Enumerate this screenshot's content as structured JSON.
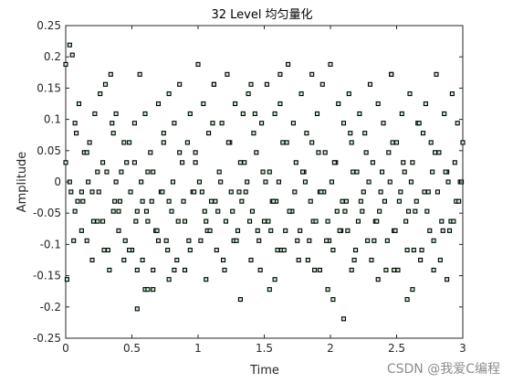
{
  "chart_data": {
    "type": "scatter",
    "title": "32 Level 均匀量化",
    "xlabel": "Time",
    "ylabel": "Amplitude",
    "xlim": [
      0,
      3
    ],
    "ylim": [
      -0.25,
      0.25
    ],
    "xticks": [
      "0",
      "0.5",
      "1",
      "1.5",
      "2",
      "2.5",
      "3"
    ],
    "yticks": [
      "-0.25",
      "-0.2",
      "-0.15",
      "-0.1",
      "-0.05",
      "0",
      "0.05",
      "0.1",
      "0.15",
      "0.2",
      "0.25"
    ],
    "grid": false,
    "legend": "none",
    "marker": "square",
    "marker_fill": "#c6efce",
    "marker_edge": "#000000",
    "quantization_levels": 32,
    "quantization_step": 0.0156,
    "series": [
      {
        "x": [
          0.0,
          0.01,
          0.03,
          0.05,
          0.07,
          0.09,
          0.1,
          0.12,
          0.14,
          0.16,
          0.18,
          0.2,
          0.22,
          0.24,
          0.26,
          0.28,
          0.3,
          0.32,
          0.34,
          0.36,
          0.38,
          0.4,
          0.42,
          0.44,
          0.46,
          0.48,
          0.5,
          0.52,
          0.54,
          0.56,
          0.58,
          0.6,
          0.62,
          0.64,
          0.66,
          0.68,
          0.7,
          0.72,
          0.74,
          0.76,
          0.78,
          0.8,
          0.82,
          0.84,
          0.86,
          0.88,
          0.9,
          0.92,
          0.94,
          0.96,
          0.98,
          1.0,
          1.02,
          1.04,
          1.06,
          1.08,
          1.1,
          1.12,
          1.14,
          1.16,
          1.18,
          1.2,
          1.22,
          1.24,
          1.26,
          1.28,
          1.3,
          1.32,
          1.34,
          1.36,
          1.38,
          1.4,
          1.42,
          1.44,
          1.46,
          1.48,
          1.5,
          1.52,
          1.54,
          1.56,
          1.58,
          1.6,
          1.62,
          1.64,
          1.66,
          1.68,
          1.7,
          1.72,
          1.74,
          1.76,
          1.78,
          1.8,
          1.82,
          1.84,
          1.86,
          1.88,
          1.9,
          1.92,
          1.94,
          1.96,
          1.98,
          2.0,
          2.02,
          2.04,
          2.06,
          2.08,
          2.1,
          2.12,
          2.14,
          2.16,
          2.18,
          2.2,
          2.22,
          2.24,
          2.26,
          2.28,
          2.3,
          2.32,
          2.34,
          2.36,
          2.38,
          2.4,
          2.42,
          2.44,
          2.46,
          2.48,
          2.5,
          2.52,
          2.54,
          2.56,
          2.58,
          2.6,
          2.62,
          2.64,
          2.66,
          2.68,
          2.7,
          2.72,
          2.74,
          2.76,
          2.78,
          2.8,
          2.82,
          2.84,
          2.86,
          2.88,
          2.9,
          2.92,
          2.94,
          2.96,
          2.98,
          3.0,
          0.0,
          0.06,
          0.08,
          0.12,
          0.16,
          0.2,
          0.24,
          0.28,
          0.33,
          0.35,
          0.37,
          0.4,
          0.44,
          0.48,
          0.52,
          0.54,
          0.58,
          0.62,
          0.66,
          0.7,
          0.74,
          0.78,
          0.82,
          0.86,
          0.9,
          0.94,
          0.98,
          1.03,
          1.07,
          1.11,
          1.15,
          1.19,
          1.23,
          1.27,
          1.31,
          1.35,
          1.39,
          1.43,
          1.47,
          1.51,
          1.55,
          1.59,
          1.63,
          1.67,
          1.71,
          1.75,
          1.79,
          1.83,
          1.87,
          1.91,
          1.95,
          1.99,
          2.03,
          2.07,
          2.11,
          2.15,
          2.19,
          2.23,
          2.27,
          2.31,
          2.35,
          2.39,
          2.43,
          2.47,
          2.51,
          2.55,
          2.59,
          2.63,
          2.67,
          2.71,
          2.75,
          2.79,
          2.83,
          2.87,
          2.91,
          2.95,
          2.99,
          0.03,
          0.04,
          0.07,
          0.13,
          0.17,
          0.21,
          0.25,
          0.29,
          0.31,
          0.36,
          0.38,
          0.41,
          0.45,
          0.49,
          0.53,
          0.57,
          0.61,
          0.65,
          0.69,
          0.73,
          0.77,
          0.81,
          0.85,
          0.89,
          0.93,
          0.97,
          1.01,
          1.05,
          1.09,
          1.13,
          1.17,
          1.21,
          1.25,
          1.29,
          1.33,
          1.37,
          1.41,
          1.45,
          1.49,
          1.53,
          1.57,
          1.61,
          1.65,
          1.69,
          1.73,
          1.77,
          1.81,
          1.85,
          1.89,
          1.93,
          1.97,
          2.01,
          2.05,
          2.09,
          2.13,
          2.17,
          2.21,
          2.25,
          2.29,
          2.33,
          2.37,
          2.41,
          2.45,
          2.49,
          2.53,
          2.57,
          2.61,
          2.65,
          2.69,
          2.73,
          2.77,
          2.81,
          2.85,
          2.89,
          2.93,
          2.97
        ],
        "y": [
          0.188,
          -0.156,
          0.219,
          0.203,
          0.094,
          -0.031,
          0.125,
          -0.078,
          0.047,
          -0.094,
          0.063,
          -0.016,
          0.109,
          -0.063,
          0.141,
          0.031,
          0.156,
          -0.109,
          0.172,
          0.078,
          0.109,
          -0.047,
          0.016,
          -0.125,
          0.031,
          0.063,
          -0.109,
          0.094,
          -0.141,
          0.172,
          -0.031,
          0.109,
          -0.063,
          0.047,
          0.016,
          -0.078,
          0.125,
          -0.016,
          0.063,
          -0.094,
          0.141,
          -0.047,
          0.094,
          -0.125,
          0.156,
          0.031,
          -0.141,
          0.063,
          0.109,
          -0.016,
          0.047,
          0.188,
          -0.094,
          0.125,
          -0.063,
          0.078,
          -0.031,
          0.156,
          -0.109,
          0.016,
          0.094,
          -0.141,
          0.172,
          0.063,
          -0.047,
          0.125,
          -0.078,
          0.031,
          0.109,
          -0.016,
          0.141,
          -0.125,
          0.078,
          0.047,
          -0.094,
          0.094,
          -0.063,
          0.156,
          0.016,
          -0.031,
          0.109,
          -0.109,
          0.125,
          0.063,
          -0.078,
          0.188,
          -0.047,
          0.094,
          0.031,
          -0.125,
          0.141,
          0.016,
          0.078,
          -0.094,
          0.063,
          -0.141,
          0.109,
          -0.016,
          0.156,
          0.047,
          -0.063,
          0.188,
          -0.109,
          0.031,
          0.125,
          -0.078,
          0.094,
          -0.031,
          0.141,
          0.063,
          -0.125,
          0.016,
          0.109,
          -0.047,
          0.078,
          -0.094,
          0.156,
          0.031,
          -0.063,
          0.125,
          -0.016,
          0.094,
          -0.141,
          0.047,
          0.172,
          -0.078,
          0.063,
          -0.031,
          0.109,
          0.016,
          -0.109,
          0.141,
          0.031,
          -0.047,
          0.094,
          -0.125,
          0.078,
          0.125,
          -0.016,
          0.063,
          -0.094,
          0.172,
          0.047,
          -0.063,
          0.109,
          0.016,
          -0.078,
          0.141,
          0.031,
          0.094,
          0.0,
          0.063,
          0.031,
          -0.094,
          0.078,
          -0.016,
          0.047,
          -0.125,
          0.016,
          -0.063,
          -0.141,
          0.094,
          -0.031,
          -0.078,
          0.063,
          -0.109,
          0.031,
          -0.047,
          -0.125,
          0.016,
          -0.172,
          -0.094,
          0.078,
          -0.031,
          -0.141,
          0.047,
          -0.063,
          -0.109,
          0.031,
          -0.016,
          -0.078,
          0.094,
          -0.047,
          -0.125,
          0.063,
          -0.094,
          -0.016,
          0.031,
          -0.063,
          0.109,
          -0.141,
          0.0,
          -0.078,
          -0.031,
          -0.109,
          0.063,
          -0.047,
          -0.094,
          0.016,
          -0.125,
          -0.063,
          0.047,
          -0.016,
          -0.094,
          0.031,
          -0.078,
          -0.047,
          0.078,
          -0.109,
          -0.031,
          0.047,
          -0.125,
          -0.063,
          0.016,
          -0.094,
          0.063,
          -0.141,
          0.031,
          -0.047,
          -0.109,
          0.094,
          -0.016,
          -0.078,
          0.047,
          -0.125,
          0.016,
          -0.063,
          -0.031,
          0.0,
          0.0,
          -0.016,
          -0.047,
          -0.031,
          0.0,
          -0.063,
          -0.016,
          -0.109,
          0.016,
          -0.047,
          0.0,
          -0.031,
          -0.094,
          -0.016,
          -0.063,
          0.0,
          -0.047,
          -0.031,
          -0.078,
          -0.016,
          -0.109,
          0.0,
          -0.063,
          -0.031,
          -0.094,
          -0.016,
          0.0,
          -0.047,
          -0.078,
          -0.031,
          0.0,
          -0.063,
          -0.016,
          -0.094,
          -0.031,
          0.0,
          -0.047,
          -0.078,
          0.016,
          -0.063,
          -0.031,
          0.0,
          -0.109,
          -0.047,
          -0.016,
          -0.078,
          0.0,
          -0.031,
          -0.063,
          -0.016,
          -0.094,
          0.0,
          -0.047,
          -0.031,
          -0.078,
          0.016,
          -0.063,
          -0.016,
          0.0,
          -0.094,
          -0.047,
          -0.031,
          0.0,
          -0.078,
          -0.016,
          -0.063,
          0.0,
          -0.031,
          -0.109,
          -0.047,
          0.016,
          -0.016,
          -0.078,
          0.0,
          -0.063,
          -0.031
        ]
      },
      {
        "x": [
          0.54,
          0.6,
          0.62,
          1.06,
          1.32,
          1.54,
          1.58,
          1.92,
          2.02,
          2.1,
          2.16,
          2.58,
          2.62,
          2.78,
          2.88,
          0.66,
          0.78,
          1.98,
          2.36,
          2.48,
          1.12,
          1.62,
          2.46,
          1.4,
          1.86
        ],
        "y": [
          -0.203,
          -0.172,
          -0.172,
          -0.156,
          -0.188,
          -0.172,
          -0.156,
          -0.141,
          -0.188,
          -0.219,
          -0.141,
          -0.188,
          -0.172,
          -0.141,
          -0.156,
          -0.141,
          -0.156,
          -0.172,
          -0.156,
          -0.141,
          0.156,
          0.172,
          0.172,
          0.156,
          0.172
        ]
      }
    ]
  },
  "watermark": "CSDN @我爱C编程"
}
